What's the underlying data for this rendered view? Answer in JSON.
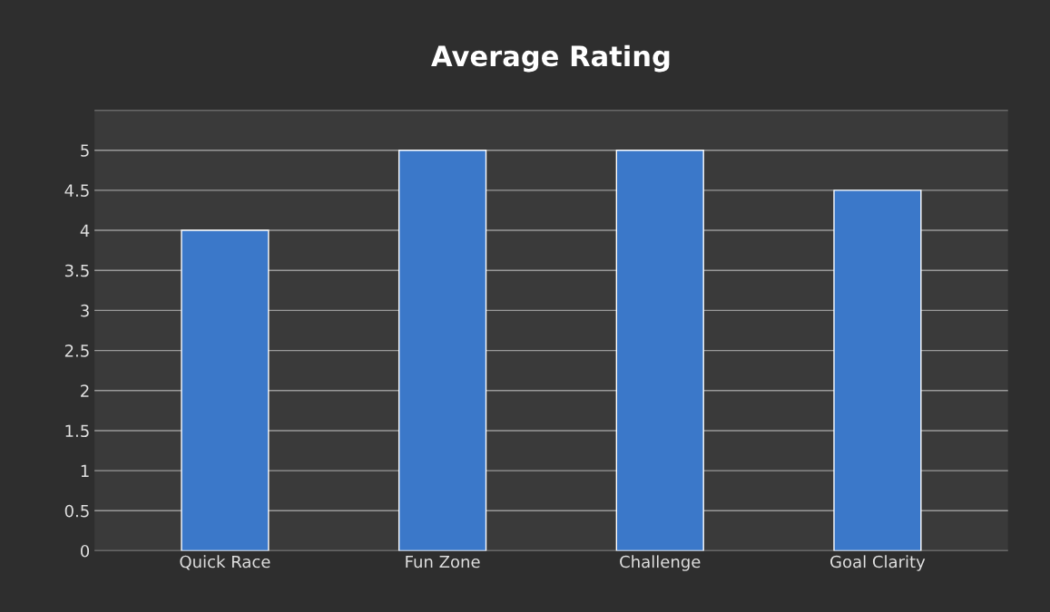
{
  "chart_data": {
    "type": "bar",
    "title": "Average Rating",
    "categories": [
      "Quick Race",
      "Fun Zone",
      "Challenge",
      "Goal Clarity"
    ],
    "values": [
      4,
      5,
      5,
      4.5
    ],
    "color": "#3b78c9",
    "ylim": [
      0,
      5.5
    ],
    "yticks": [
      0,
      0.5,
      1,
      1.5,
      2,
      2.5,
      3,
      3.5,
      4,
      4.5,
      5,
      {
        "value": 5.5,
        "label": null
      }
    ],
    "grid": "y"
  }
}
